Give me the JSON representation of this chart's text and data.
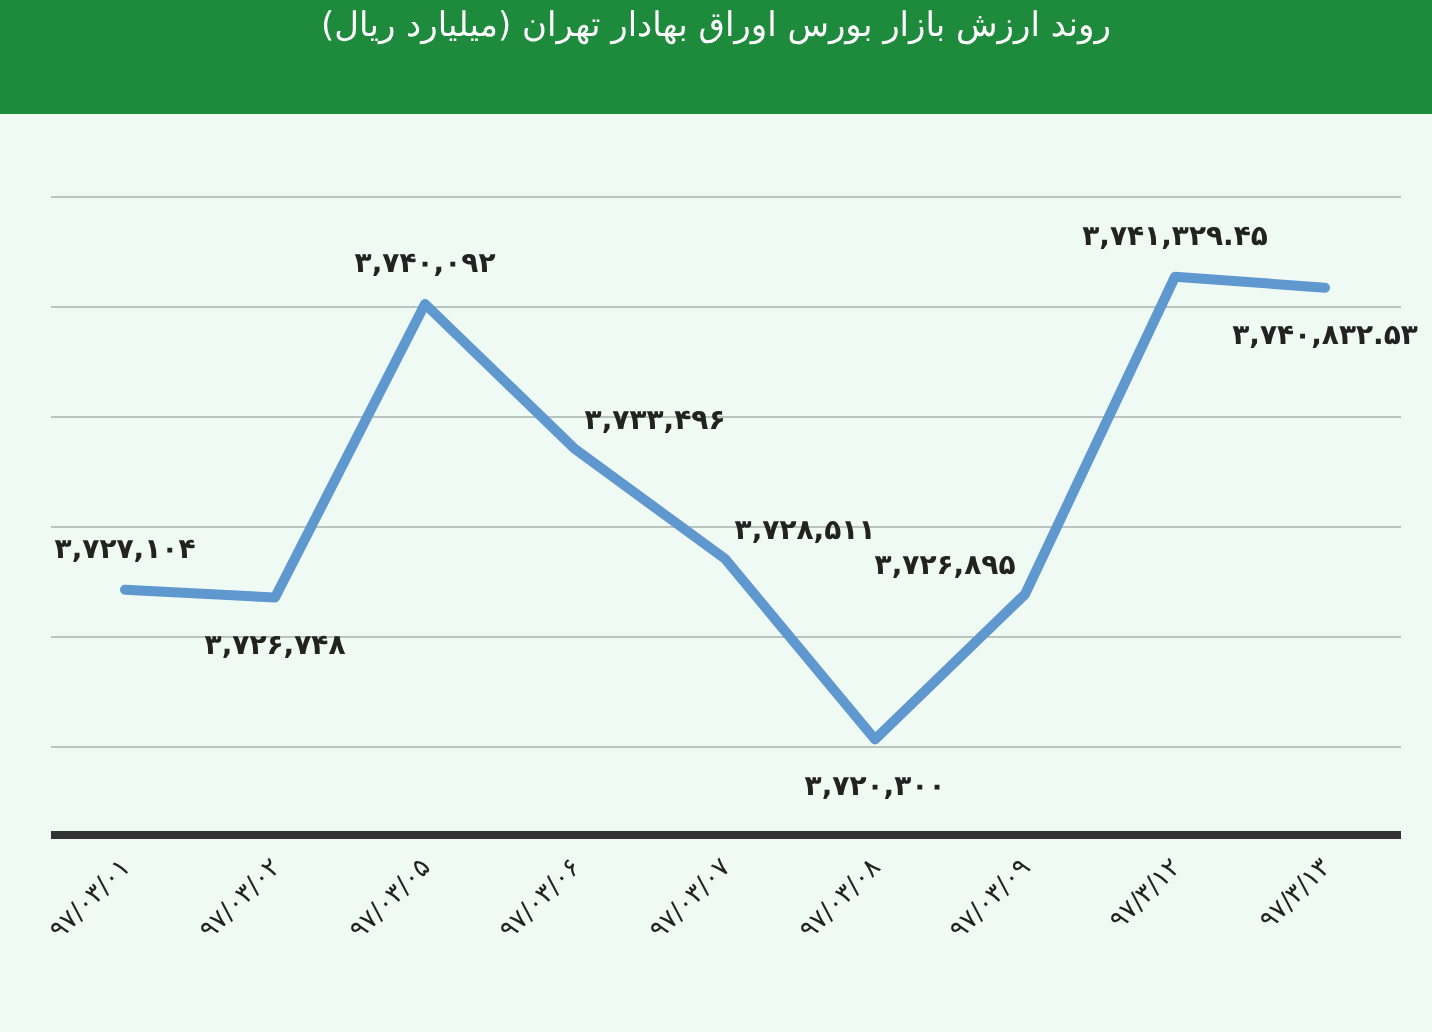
{
  "chart_data": {
    "type": "line",
    "title": "روند ارزش بازار بورس اوراق بهادار تهران (میلیارد ریال)",
    "categories": [
      "۹۷/۰۳/۰۱",
      "۹۷/۰۳/۰۲",
      "۹۷/۰۳/۰۵",
      "۹۷/۰۳/۰۶",
      "۹۷/۰۳/۰۷",
      "۹۷/۰۳/۰۸",
      "۹۷/۰۳/۰۹",
      "۹۷/۳/۱۲",
      "۹۷/۳/۱۳"
    ],
    "series": [
      {
        "color": "#5f97cf",
        "values": [
          3727104,
          3726748,
          3740092,
          3733496,
          3728511,
          3720300,
          3726895,
          3741329.45,
          3740832.53
        ],
        "value_labels": [
          "۳,۷۲۷,۱۰۴",
          "۳,۷۲۶,۷۴۸",
          "۳,۷۴۰,۰۹۲",
          "۳,۷۳۳,۴۹۶",
          "۳,۷۲۸,۵۱۱",
          "۳,۷۲۰,۳۰۰",
          "۳,۷۲۶,۸۹۵",
          "۳,۷۴۱,۳۲۹.۴۵",
          "۳,۷۴۰,۸۳۲.۵۳"
        ]
      }
    ],
    "tick_labels": "x",
    "grid": "y",
    "marker": "none",
    "line_style": "solid",
    "legend": false
  }
}
